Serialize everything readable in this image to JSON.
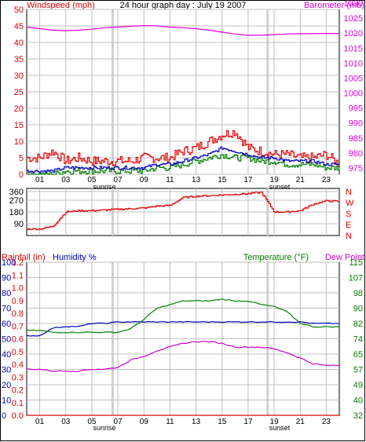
{
  "title": "24 hour graph day : July 19 2007",
  "colors": {
    "frame": "#000000",
    "grid": "#c0c0c0",
    "sunrise_line": "#d0d0d0",
    "red": "#e00000",
    "magenta": "#dd00dd",
    "blue": "#0000c0",
    "green": "#007f00",
    "dewpoint": "#cc00cc",
    "text": "#000000"
  },
  "hour_labels": [
    "01",
    "03",
    "05",
    "07",
    "09",
    "11",
    "13",
    "15",
    "17",
    "19",
    "21",
    "23"
  ],
  "sunrise_label": "sunrise",
  "sunset_label": "sunset",
  "panel1": {
    "left_label": "Windspeed (mph)",
    "right_label": "Barometer (mb)",
    "left_ticks": [
      "50",
      "45",
      "40",
      "35",
      "30",
      "25",
      "20",
      "15",
      "10",
      "5",
      "0"
    ],
    "right_ticks": [
      "1030",
      "1025",
      "1020",
      "1015",
      "1010",
      "1005",
      "1000",
      "995",
      "990",
      "985",
      "980",
      "975"
    ]
  },
  "panel2": {
    "left_ticks": [
      "360",
      "270",
      "180",
      "90"
    ],
    "compass": [
      "N",
      "W",
      "S",
      "E",
      "N"
    ]
  },
  "panel3": {
    "rain_label": "Rainfall (in)",
    "humidity_label": "Humidity %",
    "temp_label": "Temperature (°F)",
    "dew_label": "Dew Point",
    "rain_ticks": [
      "1.2",
      "1.1",
      "1.0",
      "0.9",
      "0.8",
      "0.7",
      "0.6",
      "0.5",
      "0.4",
      "0.3",
      "0.2",
      "0.1",
      "0.0"
    ],
    "humidity_ticks": [
      "100",
      "90",
      "80",
      "70",
      "60",
      "50",
      "40",
      "30",
      "20",
      "10",
      "0"
    ],
    "temp_ticks": [
      "115",
      "107",
      "98",
      "90",
      "82",
      "74",
      "65",
      "57",
      "49",
      "40",
      "32"
    ]
  },
  "chart_data": [
    {
      "type": "line",
      "title": "24 hour graph day : July 19 2007",
      "xlabel": "hour",
      "x_hours": [
        0,
        1,
        2,
        3,
        4,
        5,
        6,
        7,
        8,
        9,
        10,
        11,
        12,
        13,
        14,
        15,
        16,
        17,
        18,
        19,
        20,
        21,
        22,
        23,
        24
      ],
      "series": [
        {
          "name": "Windspeed (mph)",
          "axis": "left",
          "ylim": [
            0,
            50
          ],
          "gust": [
            5,
            5,
            7,
            4,
            5,
            4,
            4,
            4,
            4,
            5,
            5,
            5,
            7,
            8,
            10,
            12,
            13,
            8,
            7,
            6,
            6,
            5,
            5,
            6,
            3
          ],
          "average": [
            1,
            1,
            1,
            2,
            2,
            2,
            2,
            2,
            2,
            2,
            3,
            3,
            4,
            5,
            6,
            8,
            7,
            6,
            5,
            5,
            4,
            4,
            4,
            3,
            3
          ],
          "low": [
            0,
            0,
            0,
            1,
            1,
            1,
            1,
            1,
            1,
            1,
            2,
            2,
            3,
            4,
            5,
            6,
            5,
            5,
            4,
            4,
            3,
            3,
            3,
            2,
            2
          ]
        },
        {
          "name": "Barometer (mb)",
          "axis": "right",
          "ylim": [
            975,
            1030
          ],
          "values": [
            1022,
            1021.5,
            1021,
            1020.8,
            1021,
            1021.3,
            1021.8,
            1022,
            1022.3,
            1022.5,
            1022.4,
            1022,
            1021.8,
            1021.5,
            1021,
            1020.3,
            1019.7,
            1019.3,
            1019.3,
            1019.5,
            1019.7,
            1019.8,
            1019.8,
            1019.9,
            1019.9
          ]
        }
      ]
    },
    {
      "type": "line",
      "xlabel": "hour",
      "x_hours": [
        0,
        1,
        2,
        3,
        4,
        5,
        6,
        7,
        8,
        9,
        10,
        11,
        12,
        13,
        14,
        15,
        16,
        17,
        18,
        19,
        20,
        21,
        22,
        23,
        24
      ],
      "series": [
        {
          "name": "Wind direction",
          "ylim": [
            0,
            360
          ],
          "values": [
            50,
            50,
            70,
            180,
            190,
            190,
            195,
            200,
            205,
            210,
            225,
            230,
            290,
            300,
            305,
            310,
            315,
            320,
            330,
            180,
            180,
            190,
            240,
            265,
            260
          ]
        }
      ]
    },
    {
      "type": "line",
      "xlabel": "hour",
      "x_hours": [
        0,
        1,
        2,
        3,
        4,
        5,
        6,
        7,
        8,
        9,
        10,
        11,
        12,
        13,
        14,
        15,
        16,
        17,
        18,
        19,
        20,
        21,
        22,
        23,
        24
      ],
      "series": [
        {
          "name": "Rainfall (in)",
          "ylim": [
            0,
            1.2
          ],
          "values": [
            0,
            0,
            0,
            0,
            0,
            0,
            0,
            0,
            0,
            0,
            0,
            0,
            0,
            0,
            0,
            0,
            0,
            0,
            0,
            0,
            0,
            0,
            0,
            0,
            0
          ]
        },
        {
          "name": "Humidity %",
          "ylim": [
            0,
            100
          ],
          "values": [
            52,
            52,
            57,
            58,
            58,
            60,
            60,
            61,
            61,
            61,
            61,
            61,
            61,
            61,
            61,
            61,
            61,
            61,
            61,
            61,
            61,
            61,
            60,
            60,
            60
          ]
        },
        {
          "name": "Temperature (°F)",
          "ylim": [
            32,
            115
          ],
          "values": [
            78,
            78,
            77,
            77,
            77,
            77,
            77,
            77,
            79,
            84,
            90,
            92,
            94,
            94,
            94,
            95,
            94,
            94,
            92,
            91,
            88,
            82,
            80,
            80,
            80
          ]
        },
        {
          "name": "Dew Point",
          "ylim": [
            32,
            115
          ],
          "values": [
            57,
            57,
            56,
            56,
            56,
            57,
            57,
            58,
            62,
            64,
            67,
            69,
            71,
            72,
            72,
            71,
            69,
            69,
            69,
            68,
            66,
            63,
            60,
            59,
            59
          ]
        }
      ]
    }
  ]
}
